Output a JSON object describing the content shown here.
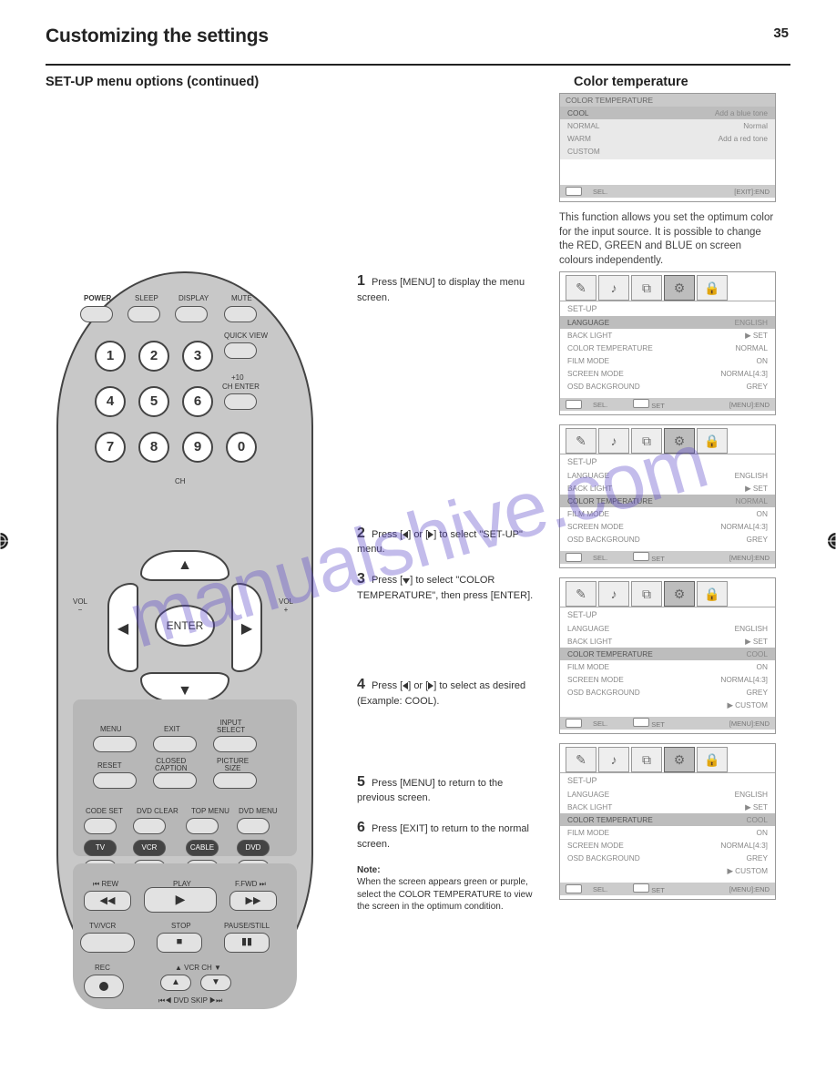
{
  "header": {
    "title": "Customizing the settings",
    "page_number": "35"
  },
  "section": {
    "left_heading": "SET-UP menu options (continued)",
    "right_heading": "Color temperature",
    "intro": "This function allows you set the optimum color for the input source. It is possible to change the RED, GREEN and BLUE on screen colours independently."
  },
  "steps": [
    {
      "n": "1",
      "text": "Press [MENU] to display the menu screen."
    },
    {
      "n": "2",
      "text": "Press [◄] or [►] to select \"SET-UP\" menu.",
      "t1": "tri-r",
      "t2": "tri-l"
    },
    {
      "n": "3",
      "text": "Press [▼] to select \"COLOR TEMPERATURE\", then press [ENTER].",
      "t1": "tri-d"
    },
    {
      "n": "4",
      "text": "Press [◄] or [►] to select as desired (Example: COOL).",
      "t1": "tri-l",
      "t2": "tri-r"
    },
    {
      "n": "5",
      "text": "Press [MENU] to return to the previous screen."
    },
    {
      "n": "6",
      "text": "Press [EXIT] to return to the normal screen."
    }
  ],
  "note": {
    "label": "Note:",
    "text": "When the screen appears green or purple, select the COLOR TEMPERATURE to view the screen in the optimum condition."
  },
  "remote": {
    "power": "POWER",
    "sleep": "SLEEP",
    "display": "DISPLAY",
    "mute": "MUTE",
    "quickview": "QUICK VIEW",
    "p10": "+10",
    "chenter": "CH ENTER",
    "ch": "CH",
    "vol_minus": "VOL\n−",
    "vol_plus": "VOL\n+",
    "enter": "ENTER",
    "menu": "MENU",
    "exit": "EXIT",
    "input_select": "INPUT\nSELECT",
    "reset": "RESET",
    "cc": "CLOSED\nCAPTION",
    "psize": "PICTURE\nSIZE",
    "codeset": "CODE SET",
    "dvdclear": "DVD CLEAR",
    "topmenu": "TOP MENU",
    "dvdmenu": "DVD MENU",
    "tv": "TV",
    "vcr": "VCR",
    "cable": "CABLE",
    "dvd": "DVD",
    "rew": "REW",
    "play": "PLAY",
    "ffwd": "F.FWD",
    "tvvcr": "TV/VCR",
    "stop": "STOP",
    "pause": "PAUSE/STILL",
    "rec": "REC",
    "vcrch": "VCR CH",
    "dvdskip": "DVD SKIP"
  },
  "osd_ct_simple": {
    "title": "COLOR TEMPERATURE",
    "rows": [
      {
        "k": "COOL",
        "v": "Add a blue tone"
      },
      {
        "k": "NORMAL",
        "v": "Normal"
      },
      {
        "k": "WARM",
        "v": "Add a red tone"
      },
      {
        "k": "CUSTOM",
        "v": ""
      }
    ],
    "foot_sel": "SEL.",
    "foot_end": "[EXIT]:END"
  },
  "osd_setup_base": {
    "tab_label": "SET-UP",
    "rows": [
      {
        "k": "LANGUAGE",
        "v": "ENGLISH"
      },
      {
        "k": "BACK LIGHT",
        "v": "▶ SET"
      },
      {
        "k": "FILM MODE",
        "v": "ON"
      },
      {
        "k": "SCREEN MODE",
        "v": "NORMAL[4:3]"
      },
      {
        "k": "OSD BACKGROUND",
        "v": "GREY"
      }
    ],
    "foot_sel": "SEL.",
    "foot_set": "SET",
    "foot_end": "[MENU]:END"
  },
  "osd_variants": [
    {
      "highlight_idx": 0,
      "ct_value": "NORMAL",
      "extra_row": null
    },
    {
      "highlight_idx": 2,
      "ct_value": "NORMAL",
      "extra_row": null
    },
    {
      "highlight_idx": 2,
      "ct_value": "COOL",
      "extra_row": "▶ CUSTOM"
    },
    {
      "highlight_idx": 2,
      "ct_value": "COOL",
      "extra_row": "▶ CUSTOM"
    }
  ],
  "watermark": "manualshive.com",
  "colors": {
    "mid_grey": "#bdbdbd",
    "light_grey": "#e2e2e2",
    "text": "#333333"
  }
}
